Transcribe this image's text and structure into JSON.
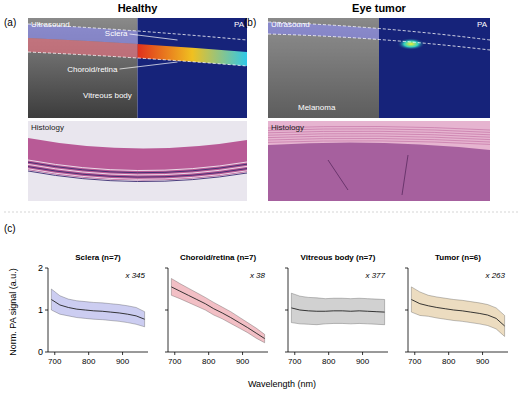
{
  "figure": {
    "panels": [
      {
        "label": "(a)",
        "title": "Healthy",
        "texts": [
          "Ultrasound",
          "PA",
          "Sclera",
          "Choroid/retina",
          "Vitreous body",
          "Histology"
        ]
      },
      {
        "label": "(b)",
        "title": "Eye tumor",
        "texts": [
          "Ultrasound",
          "PA",
          "Melanoma",
          "Histology"
        ]
      }
    ],
    "chart_panel_label": "(c)",
    "ylabel": "Norm. PA signal (a.u.)",
    "xlabel": "Wavelength (nm)"
  },
  "chart_data": [
    {
      "type": "line",
      "title": "Sclera (n=7)",
      "annotation": "x 345",
      "color": "#6d6fd6",
      "x": [
        690,
        715,
        740,
        765,
        790,
        815,
        840,
        865,
        890,
        915,
        940,
        965
      ],
      "values": [
        1.25,
        1.12,
        1.06,
        1.02,
        1.0,
        0.98,
        0.97,
        0.95,
        0.93,
        0.9,
        0.86,
        0.78
      ],
      "errors": [
        0.25,
        0.22,
        0.2,
        0.2,
        0.2,
        0.2,
        0.2,
        0.2,
        0.2,
        0.2,
        0.2,
        0.18
      ],
      "xlim": [
        680,
        975
      ],
      "ylim": [
        0,
        2
      ],
      "xticks": [
        700,
        800,
        900
      ],
      "yticks": [
        0,
        1,
        2
      ],
      "tick_labels": true,
      "grid": false
    },
    {
      "type": "line",
      "title": "Choroid/retina (n=7)",
      "annotation": "x 38",
      "color": "#d9485a",
      "x": [
        690,
        715,
        740,
        765,
        790,
        815,
        840,
        865,
        890,
        915,
        940,
        965
      ],
      "values": [
        1.55,
        1.45,
        1.35,
        1.25,
        1.15,
        1.03,
        0.93,
        0.82,
        0.7,
        0.58,
        0.45,
        0.32
      ],
      "errors": [
        0.2,
        0.18,
        0.17,
        0.16,
        0.15,
        0.15,
        0.14,
        0.14,
        0.13,
        0.12,
        0.12,
        0.1
      ],
      "xlim": [
        680,
        975
      ],
      "ylim": [
        0,
        2
      ],
      "xticks": [
        700,
        800,
        900
      ],
      "yticks": [
        0,
        1,
        2
      ],
      "tick_labels": "x",
      "grid": false
    },
    {
      "type": "line",
      "title": "Vitreous body (n=7)",
      "annotation": "x 377",
      "color": "#7a7a7a",
      "x": [
        690,
        715,
        740,
        765,
        790,
        815,
        840,
        865,
        890,
        915,
        940,
        965
      ],
      "values": [
        1.05,
        1.0,
        0.98,
        0.97,
        0.97,
        0.98,
        0.98,
        0.97,
        0.98,
        0.97,
        0.96,
        0.95
      ],
      "errors": [
        0.35,
        0.33,
        0.32,
        0.32,
        0.3,
        0.3,
        0.3,
        0.3,
        0.3,
        0.3,
        0.3,
        0.3
      ],
      "xlim": [
        680,
        975
      ],
      "ylim": [
        0,
        2
      ],
      "xticks": [
        700,
        800,
        900
      ],
      "yticks": [
        0,
        1,
        2
      ],
      "tick_labels": "x",
      "grid": false
    },
    {
      "type": "line",
      "title": "Tumor (n=6)",
      "annotation": "x 263",
      "color": "#c99a4a",
      "x": [
        690,
        715,
        740,
        765,
        790,
        815,
        840,
        865,
        890,
        915,
        940,
        965
      ],
      "values": [
        1.25,
        1.15,
        1.1,
        1.06,
        1.03,
        1.0,
        0.98,
        0.95,
        0.92,
        0.88,
        0.8,
        0.62
      ],
      "errors": [
        0.3,
        0.28,
        0.25,
        0.25,
        0.25,
        0.25,
        0.25,
        0.25,
        0.25,
        0.25,
        0.25,
        0.25
      ],
      "xlim": [
        680,
        975
      ],
      "ylim": [
        0,
        2
      ],
      "xticks": [
        700,
        800,
        900
      ],
      "yticks": [
        0,
        1,
        2
      ],
      "tick_labels": "x",
      "grid": false
    }
  ]
}
